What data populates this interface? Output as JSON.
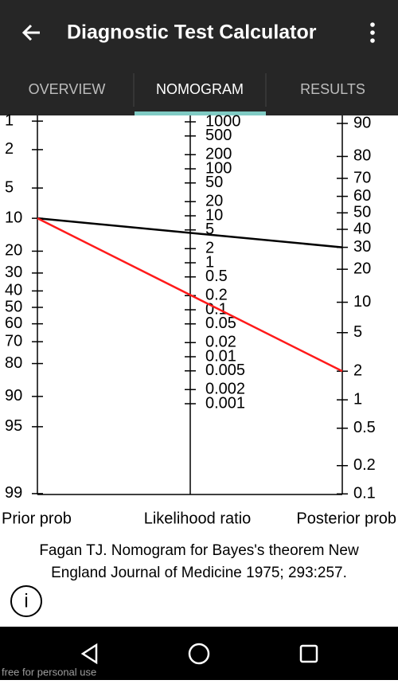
{
  "header": {
    "title": "Diagnostic Test Calculator"
  },
  "tabs": [
    "OVERVIEW",
    "NOMOGRAM",
    "RESULTS"
  ],
  "nomogram": {
    "prior_axis": {
      "label": "Prior prob",
      "ticks": [
        1,
        2,
        5,
        10,
        20,
        30,
        40,
        50,
        60,
        70,
        80,
        90,
        95,
        99
      ]
    },
    "lr_axis": {
      "label": "Likelihood ratio",
      "ticks": [
        1000,
        500,
        200,
        100,
        50,
        20,
        10,
        5,
        2,
        1,
        0.5,
        0.2,
        0.1,
        0.05,
        0.02,
        0.01,
        0.005,
        0.002,
        0.001
      ]
    },
    "posterior_axis": {
      "label": "Posterior prob",
      "ticks": [
        90,
        80,
        70,
        60,
        50,
        40,
        30,
        20,
        10,
        5,
        2,
        1,
        0.5,
        0.2,
        0.1
      ]
    },
    "lines": [
      {
        "color": "#000000",
        "prior": 10,
        "posterior": 30
      },
      {
        "color": "#ff1a1a",
        "prior": 10,
        "posterior": 2
      }
    ]
  },
  "citation": [
    "Fagan TJ. Nomogram for Bayes's theorem New",
    "England Journal of Medicine 1975; 293:257."
  ],
  "footer": "free for personal use"
}
